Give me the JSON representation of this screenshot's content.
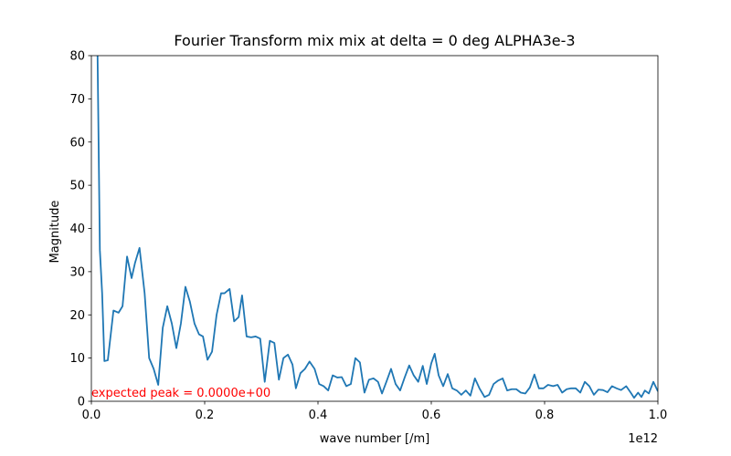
{
  "chart_data": {
    "type": "line",
    "title": "Fourier Transform mix mix at delta = 0 deg ALPHA3e-3",
    "xlabel": "wave number [/m]",
    "ylabel": "Magnitude",
    "x_offset_label": "1e12",
    "annotation": {
      "text": "expected peak = 0.0000e+00",
      "color": "#ff0000"
    },
    "color": "#1f77b4",
    "xlim": [
      0,
      1
    ],
    "ylim": [
      0,
      80
    ],
    "xticks": [
      {
        "value": 0,
        "label": "0.0"
      },
      {
        "value": 0.2,
        "label": "0.2"
      },
      {
        "value": 0.4,
        "label": "0.4"
      },
      {
        "value": 0.6,
        "label": "0.6"
      },
      {
        "value": 0.8,
        "label": "0.8"
      },
      {
        "value": 1,
        "label": "1.0"
      }
    ],
    "yticks": [
      0,
      10,
      20,
      30,
      40,
      50,
      60,
      70,
      80
    ],
    "x": [
      0.01,
      0.015,
      0.019,
      0.023,
      0.029,
      0.039,
      0.048,
      0.055,
      0.063,
      0.071,
      0.077,
      0.085,
      0.094,
      0.102,
      0.11,
      0.118,
      0.126,
      0.134,
      0.142,
      0.15,
      0.158,
      0.166,
      0.174,
      0.182,
      0.19,
      0.197,
      0.205,
      0.213,
      0.221,
      0.229,
      0.235,
      0.244,
      0.252,
      0.26,
      0.266,
      0.274,
      0.282,
      0.29,
      0.298,
      0.306,
      0.315,
      0.323,
      0.331,
      0.339,
      0.347,
      0.355,
      0.361,
      0.369,
      0.377,
      0.385,
      0.394,
      0.402,
      0.41,
      0.418,
      0.426,
      0.434,
      0.442,
      0.45,
      0.458,
      0.466,
      0.474,
      0.482,
      0.49,
      0.498,
      0.506,
      0.513,
      0.521,
      0.529,
      0.537,
      0.545,
      0.553,
      0.561,
      0.569,
      0.577,
      0.585,
      0.592,
      0.6,
      0.606,
      0.613,
      0.621,
      0.629,
      0.637,
      0.645,
      0.653,
      0.661,
      0.669,
      0.677,
      0.685,
      0.694,
      0.702,
      0.71,
      0.718,
      0.726,
      0.734,
      0.742,
      0.75,
      0.758,
      0.766,
      0.774,
      0.782,
      0.79,
      0.798,
      0.806,
      0.815,
      0.823,
      0.831,
      0.839,
      0.847,
      0.855,
      0.863,
      0.871,
      0.879,
      0.887,
      0.895,
      0.903,
      0.911,
      0.919,
      0.927,
      0.935,
      0.944,
      0.952,
      0.958,
      0.965,
      0.971,
      0.977,
      0.984,
      0.992,
      1.0
    ],
    "values": [
      90,
      35,
      25,
      9.3,
      9.5,
      21,
      20.5,
      22,
      33.5,
      28.5,
      32,
      35.5,
      25,
      10,
      7.5,
      3.8,
      17,
      22,
      18,
      12.3,
      18,
      26.5,
      23,
      18,
      15.5,
      15,
      9.6,
      11.5,
      20,
      25,
      25,
      26,
      18.5,
      19.5,
      24.5,
      15,
      14.8,
      15,
      14.5,
      4.5,
      14,
      13.5,
      5,
      10,
      10.8,
      8.5,
      3,
      6.5,
      7.5,
      9.2,
      7.5,
      4,
      3.5,
      2.5,
      6,
      5.5,
      5.6,
      3.5,
      4,
      10,
      9,
      2,
      5,
      5.3,
      4.5,
      1.8,
      4.6,
      7.5,
      4,
      2.5,
      5.5,
      8.3,
      6,
      4.5,
      8.2,
      4,
      8.8,
      11,
      6,
      3.5,
      6.3,
      3,
      2.5,
      1.5,
      2.5,
      1.3,
      5.3,
      3,
      1,
      1.5,
      4,
      4.8,
      5.3,
      2.5,
      2.8,
      2.8,
      2,
      1.8,
      3.2,
      6.2,
      3,
      3,
      3.8,
      3.5,
      3.8,
      2,
      2.8,
      3,
      3,
      2,
      4.5,
      3.5,
      1.5,
      2.7,
      2.6,
      2.1,
      3.5,
      3,
      2.6,
      3.5,
      2,
      0.8,
      2,
      1,
      2.5,
      1.8,
      4.5,
      2.3
    ]
  }
}
